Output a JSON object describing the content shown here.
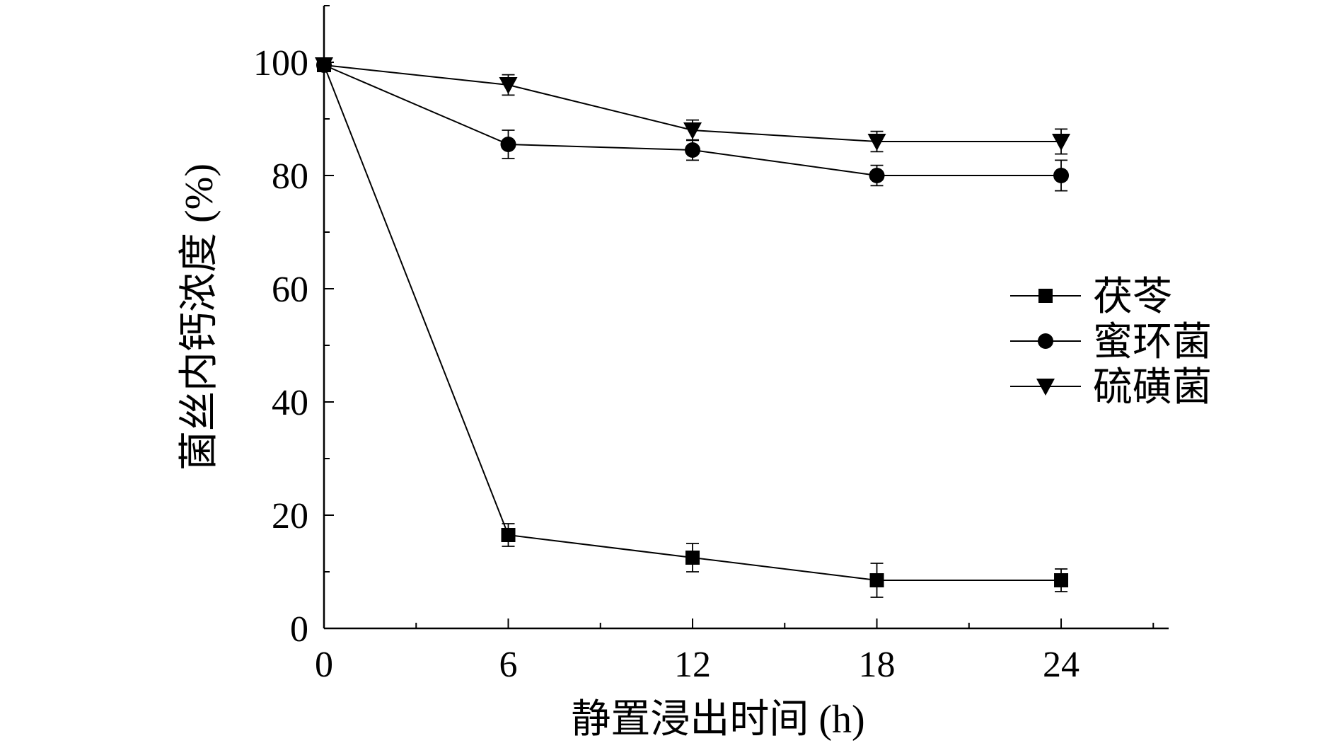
{
  "chart_data": {
    "type": "line",
    "xlabel": "静置浸出时间 (h)",
    "ylabel": "菌丝内钙浓度 (%)",
    "xlim": [
      0,
      27.5
    ],
    "ylim": [
      0,
      110
    ],
    "xticks": [
      0,
      6,
      12,
      18,
      24
    ],
    "xtick_labels": [
      "0",
      "6",
      "12",
      "18",
      "24"
    ],
    "yticks": [
      0,
      20,
      40,
      60,
      80,
      100
    ],
    "ytick_labels": [
      "0",
      "20",
      "40",
      "60",
      "80",
      "100"
    ],
    "grid": false,
    "legend_position": "right",
    "x": [
      0,
      6,
      12,
      18,
      24
    ],
    "series": [
      {
        "name": "茯苓",
        "marker": "square",
        "values": [
          99.5,
          16.5,
          12.5,
          8.5,
          8.5
        ],
        "errors": [
          1.0,
          2.0,
          2.5,
          3.0,
          2.0
        ]
      },
      {
        "name": "蜜环菌",
        "marker": "circle",
        "values": [
          99.5,
          85.5,
          84.5,
          80,
          80
        ],
        "errors": [
          1.0,
          2.5,
          1.8,
          1.8,
          2.7
        ]
      },
      {
        "name": "硫磺菌",
        "marker": "triangle-down",
        "values": [
          99.5,
          96,
          88,
          86,
          86
        ],
        "errors": [
          1.0,
          1.8,
          1.8,
          1.8,
          2.2
        ]
      }
    ],
    "colors": {
      "line": "#000000",
      "marker": "#000000"
    }
  }
}
